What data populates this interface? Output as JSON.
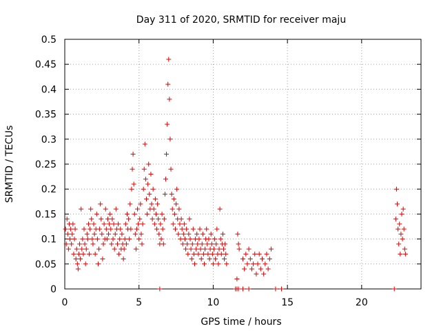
{
  "chart_data": {
    "type": "scatter",
    "title": "Day 311 of 2020, SRMTID for receiver maju",
    "xlabel": "GPS time / hours",
    "ylabel": "SRMTID / TECUs",
    "xlim": [
      0,
      24
    ],
    "ylim": [
      0,
      0.5
    ],
    "xticks": [
      0,
      5,
      10,
      15,
      20
    ],
    "xtick_labels": [
      "0",
      "5",
      "10",
      "15",
      "20"
    ],
    "yticks": [
      0,
      0.05,
      0.1,
      0.15,
      0.2,
      0.25,
      0.3,
      0.35,
      0.4,
      0.45,
      0.5
    ],
    "ytick_labels": [
      "0",
      "0.05",
      "0.1",
      "0.15",
      "0.2",
      "0.25",
      "0.3",
      "0.35",
      "0.4",
      "0.45",
      "0.5"
    ],
    "grid": true,
    "marker": "+",
    "color": "#e00000",
    "series": [
      {
        "name": "SRMTID",
        "points": [
          [
            0.05,
            0.12
          ],
          [
            0.1,
            0.09
          ],
          [
            0.15,
            0.14
          ],
          [
            0.2,
            0.11
          ],
          [
            0.25,
            0.08
          ],
          [
            0.3,
            0.13
          ],
          [
            0.35,
            0.1
          ],
          [
            0.4,
            0.12
          ],
          [
            0.45,
            0.09
          ],
          [
            0.5,
            0.11
          ],
          [
            0.55,
            0.13
          ],
          [
            0.6,
            0.07
          ],
          [
            0.65,
            0.1
          ],
          [
            0.7,
            0.12
          ],
          [
            0.75,
            0.06
          ],
          [
            0.8,
            0.08
          ],
          [
            0.85,
            0.05
          ],
          [
            0.9,
            0.04
          ],
          [
            0.95,
            0.07
          ],
          [
            1.0,
            0.09
          ],
          [
            1.05,
            0.06
          ],
          [
            1.1,
            0.16
          ],
          [
            1.15,
            0.08
          ],
          [
            1.2,
            0.1
          ],
          [
            1.25,
            0.07
          ],
          [
            1.3,
            0.12
          ],
          [
            1.35,
            0.09
          ],
          [
            1.4,
            0.05
          ],
          [
            1.45,
            0.08
          ],
          [
            1.5,
            0.11
          ],
          [
            1.55,
            0.1
          ],
          [
            1.6,
            0.13
          ],
          [
            1.65,
            0.07
          ],
          [
            1.7,
            0.12
          ],
          [
            1.75,
            0.16
          ],
          [
            1.8,
            0.14
          ],
          [
            1.85,
            0.1
          ],
          [
            1.9,
            0.09
          ],
          [
            1.95,
            0.13
          ],
          [
            2.0,
            0.11
          ],
          [
            2.05,
            0.07
          ],
          [
            2.1,
            0.12
          ],
          [
            2.15,
            0.15
          ],
          [
            2.2,
            0.1
          ],
          [
            2.25,
            0.05
          ],
          [
            2.3,
            0.08
          ],
          [
            2.35,
            0.12
          ],
          [
            2.4,
            0.17
          ],
          [
            2.45,
            0.14
          ],
          [
            2.5,
            0.11
          ],
          [
            2.55,
            0.06
          ],
          [
            2.6,
            0.09
          ],
          [
            2.65,
            0.13
          ],
          [
            2.7,
            0.1
          ],
          [
            2.75,
            0.16
          ],
          [
            2.8,
            0.12
          ],
          [
            2.85,
            0.1
          ],
          [
            2.9,
            0.14
          ],
          [
            2.95,
            0.11
          ],
          [
            3.0,
            0.13
          ],
          [
            3.05,
            0.15
          ],
          [
            3.1,
            0.12
          ],
          [
            3.15,
            0.09
          ],
          [
            3.2,
            0.14
          ],
          [
            3.25,
            0.1
          ],
          [
            3.3,
            0.13
          ],
          [
            3.35,
            0.08
          ],
          [
            3.4,
            0.11
          ],
          [
            3.45,
            0.16
          ],
          [
            3.5,
            0.12
          ],
          [
            3.55,
            0.09
          ],
          [
            3.6,
            0.13
          ],
          [
            3.65,
            0.07
          ],
          [
            3.7,
            0.1
          ],
          [
            3.75,
            0.12
          ],
          [
            3.8,
            0.08
          ],
          [
            3.85,
            0.11
          ],
          [
            3.9,
            0.09
          ],
          [
            3.95,
            0.06
          ],
          [
            4.0,
            0.08
          ],
          [
            4.05,
            0.1
          ],
          [
            4.1,
            0.13
          ],
          [
            4.15,
            0.09
          ],
          [
            4.2,
            0.15
          ],
          [
            4.25,
            0.12
          ],
          [
            4.3,
            0.14
          ],
          [
            4.35,
            0.1
          ],
          [
            4.4,
            0.17
          ],
          [
            4.45,
            0.12
          ],
          [
            4.5,
            0.2
          ],
          [
            4.55,
            0.24
          ],
          [
            4.6,
            0.27
          ],
          [
            4.65,
            0.21
          ],
          [
            4.7,
            0.15
          ],
          [
            4.75,
            0.11
          ],
          [
            4.8,
            0.08
          ],
          [
            4.85,
            0.12
          ],
          [
            4.9,
            0.16
          ],
          [
            4.95,
            0.13
          ],
          [
            5.0,
            0.1
          ],
          [
            5.05,
            0.14
          ],
          [
            5.1,
            0.17
          ],
          [
            5.15,
            0.11
          ],
          [
            5.2,
            0.09
          ],
          [
            5.25,
            0.13
          ],
          [
            5.3,
            0.2
          ],
          [
            5.35,
            0.24
          ],
          [
            5.4,
            0.29
          ],
          [
            5.45,
            0.22
          ],
          [
            5.5,
            0.18
          ],
          [
            5.55,
            0.15
          ],
          [
            5.6,
            0.21
          ],
          [
            5.65,
            0.25
          ],
          [
            5.7,
            0.19
          ],
          [
            5.75,
            0.16
          ],
          [
            5.8,
            0.23
          ],
          [
            5.85,
            0.17
          ],
          [
            5.9,
            0.14
          ],
          [
            5.95,
            0.2
          ],
          [
            6.0,
            0.16
          ],
          [
            6.05,
            0.13
          ],
          [
            6.1,
            0.18
          ],
          [
            6.15,
            0.15
          ],
          [
            6.2,
            0.12
          ],
          [
            6.25,
            0.17
          ],
          [
            6.3,
            0.14
          ],
          [
            6.35,
            0.11
          ],
          [
            6.4,
            0.09
          ],
          [
            6.45,
            0.13
          ],
          [
            6.5,
            0.1
          ],
          [
            6.55,
            0.15
          ],
          [
            6.6,
            0.12
          ],
          [
            6.65,
            0.09
          ],
          [
            6.7,
            0.14
          ],
          [
            6.75,
            0.19
          ],
          [
            6.8,
            0.22
          ],
          [
            6.85,
            0.27
          ],
          [
            6.9,
            0.33
          ],
          [
            6.95,
            0.41
          ],
          [
            7.0,
            0.46
          ],
          [
            7.05,
            0.38
          ],
          [
            7.1,
            0.3
          ],
          [
            7.15,
            0.24
          ],
          [
            7.2,
            0.19
          ],
          [
            7.25,
            0.16
          ],
          [
            7.3,
            0.13
          ],
          [
            7.35,
            0.18
          ],
          [
            7.4,
            0.15
          ],
          [
            7.45,
            0.12
          ],
          [
            7.5,
            0.17
          ],
          [
            7.55,
            0.2
          ],
          [
            7.6,
            0.14
          ],
          [
            7.65,
            0.11
          ],
          [
            7.7,
            0.16
          ],
          [
            7.75,
            0.13
          ],
          [
            7.8,
            0.1
          ],
          [
            7.85,
            0.14
          ],
          [
            7.9,
            0.12
          ],
          [
            7.95,
            0.09
          ],
          [
            8.0,
            0.11
          ],
          [
            8.05,
            0.13
          ],
          [
            8.1,
            0.1
          ],
          [
            8.15,
            0.08
          ],
          [
            8.2,
            0.12
          ],
          [
            8.25,
            0.09
          ],
          [
            8.3,
            0.07
          ],
          [
            8.35,
            0.11
          ],
          [
            8.4,
            0.14
          ],
          [
            8.45,
            0.1
          ],
          [
            8.5,
            0.08
          ],
          [
            8.55,
            0.06
          ],
          [
            8.6,
            0.09
          ],
          [
            8.65,
            0.12
          ],
          [
            8.7,
            0.07
          ],
          [
            8.75,
            0.05
          ],
          [
            8.8,
            0.1
          ],
          [
            8.85,
            0.08
          ],
          [
            8.9,
            0.11
          ],
          [
            8.95,
            0.09
          ],
          [
            9.0,
            0.07
          ],
          [
            9.05,
            0.1
          ],
          [
            9.1,
            0.12
          ],
          [
            9.15,
            0.08
          ],
          [
            9.2,
            0.06
          ],
          [
            9.25,
            0.09
          ],
          [
            9.3,
            0.11
          ],
          [
            9.35,
            0.07
          ],
          [
            9.4,
            0.05
          ],
          [
            9.45,
            0.08
          ],
          [
            9.5,
            0.1
          ],
          [
            9.55,
            0.12
          ],
          [
            9.6,
            0.09
          ],
          [
            9.65,
            0.07
          ],
          [
            9.7,
            0.1
          ],
          [
            9.75,
            0.06
          ],
          [
            9.8,
            0.08
          ],
          [
            9.85,
            0.11
          ],
          [
            9.9,
            0.09
          ],
          [
            9.95,
            0.07
          ],
          [
            10.0,
            0.05
          ],
          [
            10.05,
            0.08
          ],
          [
            10.1,
            0.1
          ],
          [
            10.15,
            0.06
          ],
          [
            10.2,
            0.09
          ],
          [
            10.25,
            0.12
          ],
          [
            10.3,
            0.07
          ],
          [
            10.35,
            0.05
          ],
          [
            10.4,
            0.08
          ],
          [
            10.45,
            0.16
          ],
          [
            10.5,
            0.1
          ],
          [
            10.55,
            0.07
          ],
          [
            10.6,
            0.09
          ],
          [
            10.65,
            0.11
          ],
          [
            10.7,
            0.08
          ],
          [
            10.75,
            0.06
          ],
          [
            10.8,
            0.09
          ],
          [
            10.85,
            0.07
          ],
          [
            10.9,
            0.05
          ],
          [
            11.65,
            0.11
          ],
          [
            11.7,
            0.09
          ],
          [
            11.75,
            0.08
          ],
          [
            11.6,
            0.02
          ],
          [
            12.0,
            0.06
          ],
          [
            12.1,
            0.04
          ],
          [
            12.2,
            0.07
          ],
          [
            12.3,
            0.05
          ],
          [
            12.4,
            0.08
          ],
          [
            12.5,
            0.06
          ],
          [
            12.6,
            0.04
          ],
          [
            12.7,
            0.05
          ],
          [
            12.8,
            0.07
          ],
          [
            12.9,
            0.03
          ],
          [
            13.0,
            0.05
          ],
          [
            13.1,
            0.07
          ],
          [
            13.2,
            0.04
          ],
          [
            13.3,
            0.06
          ],
          [
            13.4,
            0.03
          ],
          [
            13.5,
            0.05
          ],
          [
            13.6,
            0.07
          ],
          [
            13.7,
            0.04
          ],
          [
            13.8,
            0.06
          ],
          [
            13.9,
            0.08
          ],
          [
            22.3,
            0.14
          ],
          [
            22.35,
            0.2
          ],
          [
            22.4,
            0.17
          ],
          [
            22.45,
            0.12
          ],
          [
            22.5,
            0.09
          ],
          [
            22.55,
            0.13
          ],
          [
            22.6,
            0.07
          ],
          [
            22.65,
            0.11
          ],
          [
            22.7,
            0.15
          ],
          [
            22.75,
            0.1
          ],
          [
            22.8,
            0.16
          ],
          [
            22.85,
            0.12
          ],
          [
            22.9,
            0.08
          ],
          [
            22.95,
            0.07
          ],
          [
            6.4,
            0
          ],
          [
            11.5,
            0
          ],
          [
            11.6,
            0
          ],
          [
            11.7,
            0
          ],
          [
            12.0,
            0
          ],
          [
            12.4,
            0
          ],
          [
            14.2,
            0
          ],
          [
            14.6,
            0
          ],
          [
            22.2,
            0
          ]
        ]
      }
    ]
  }
}
